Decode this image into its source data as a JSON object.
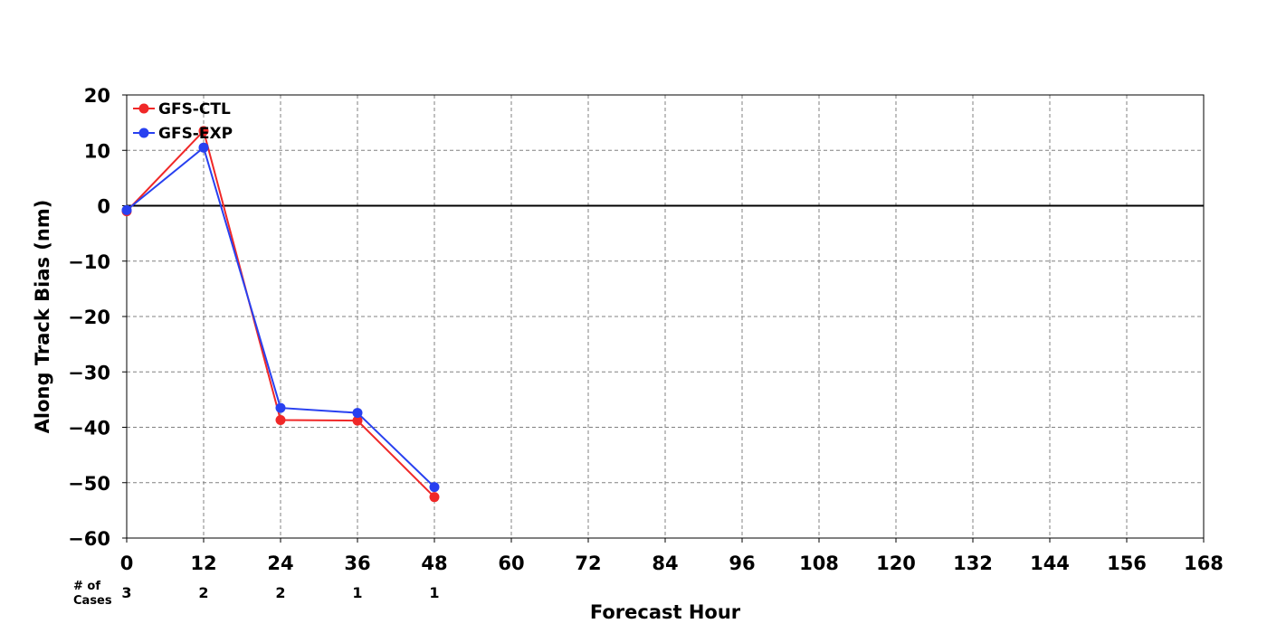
{
  "chart_data": {
    "type": "line",
    "title": "",
    "xlabel": "Forecast Hour",
    "ylabel": "Along Track Bias (nm)",
    "xlim": [
      0,
      168
    ],
    "ylim": [
      -60,
      20
    ],
    "xticks": [
      0,
      12,
      24,
      36,
      48,
      60,
      72,
      84,
      96,
      108,
      120,
      132,
      144,
      156,
      168
    ],
    "yticks": [
      -60,
      -50,
      -40,
      -30,
      -20,
      -10,
      0,
      10,
      20
    ],
    "ytick_labels": [
      "−60",
      "−50",
      "−40",
      "−30",
      "−20",
      "−10",
      "0",
      "10",
      "20"
    ],
    "grid": true,
    "zero_line": true,
    "legend_position": "top-left",
    "cases_label": "# of Cases",
    "cases": [
      {
        "x": 0,
        "n": "3"
      },
      {
        "x": 12,
        "n": "2"
      },
      {
        "x": 24,
        "n": "2"
      },
      {
        "x": 36,
        "n": "1"
      },
      {
        "x": 48,
        "n": "1"
      }
    ],
    "series": [
      {
        "name": "GFS-CTL",
        "color": "#f02828",
        "x": [
          0,
          12,
          24,
          36,
          48
        ],
        "values": [
          -1.0,
          13.5,
          -38.7,
          -38.8,
          -52.6
        ]
      },
      {
        "name": "GFS-EXP",
        "color": "#2840f0",
        "x": [
          0,
          12,
          24,
          36,
          48
        ],
        "values": [
          -0.8,
          10.5,
          -36.5,
          -37.4,
          -50.8
        ]
      }
    ]
  }
}
